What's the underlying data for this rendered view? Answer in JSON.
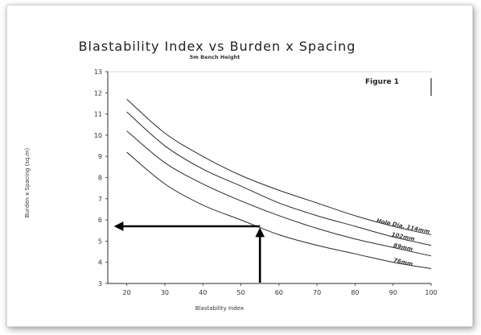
{
  "chart_data": {
    "type": "line",
    "title": "Blastability Index vs Burden x Spacing",
    "subtitle": "5m Bench Height",
    "annotation": "Figure 1",
    "xlabel": "Blastability Index",
    "ylabel": "Burden x Spacing (sq.m)",
    "xlim": [
      15,
      100
    ],
    "ylim": [
      3,
      13
    ],
    "x_ticks": [
      20,
      30,
      40,
      50,
      60,
      70,
      80,
      90,
      100
    ],
    "y_ticks": [
      3,
      4,
      5,
      6,
      7,
      8,
      9,
      10,
      11,
      12,
      13
    ],
    "x": [
      20,
      30,
      40,
      50,
      60,
      70,
      80,
      90,
      100
    ],
    "series": [
      {
        "name": "Hole Dia. 114mm",
        "values": [
          11.7,
          10.1,
          9.0,
          8.1,
          7.4,
          6.8,
          6.2,
          5.7,
          5.3
        ]
      },
      {
        "name": "102mm",
        "values": [
          11.1,
          9.5,
          8.4,
          7.6,
          6.8,
          6.2,
          5.7,
          5.2,
          4.8
        ]
      },
      {
        "name": "89mm",
        "values": [
          10.2,
          8.7,
          7.7,
          6.9,
          6.2,
          5.6,
          5.1,
          4.7,
          4.3
        ]
      },
      {
        "name": "76mm",
        "values": [
          9.2,
          7.7,
          6.7,
          6.0,
          5.3,
          4.8,
          4.4,
          4.0,
          3.7
        ]
      }
    ],
    "arrow": {
      "from_x": 55,
      "to_y": 5.7
    },
    "grid": false,
    "colors": {
      "line": "#2a2a2a",
      "arrow": "#000000"
    }
  }
}
